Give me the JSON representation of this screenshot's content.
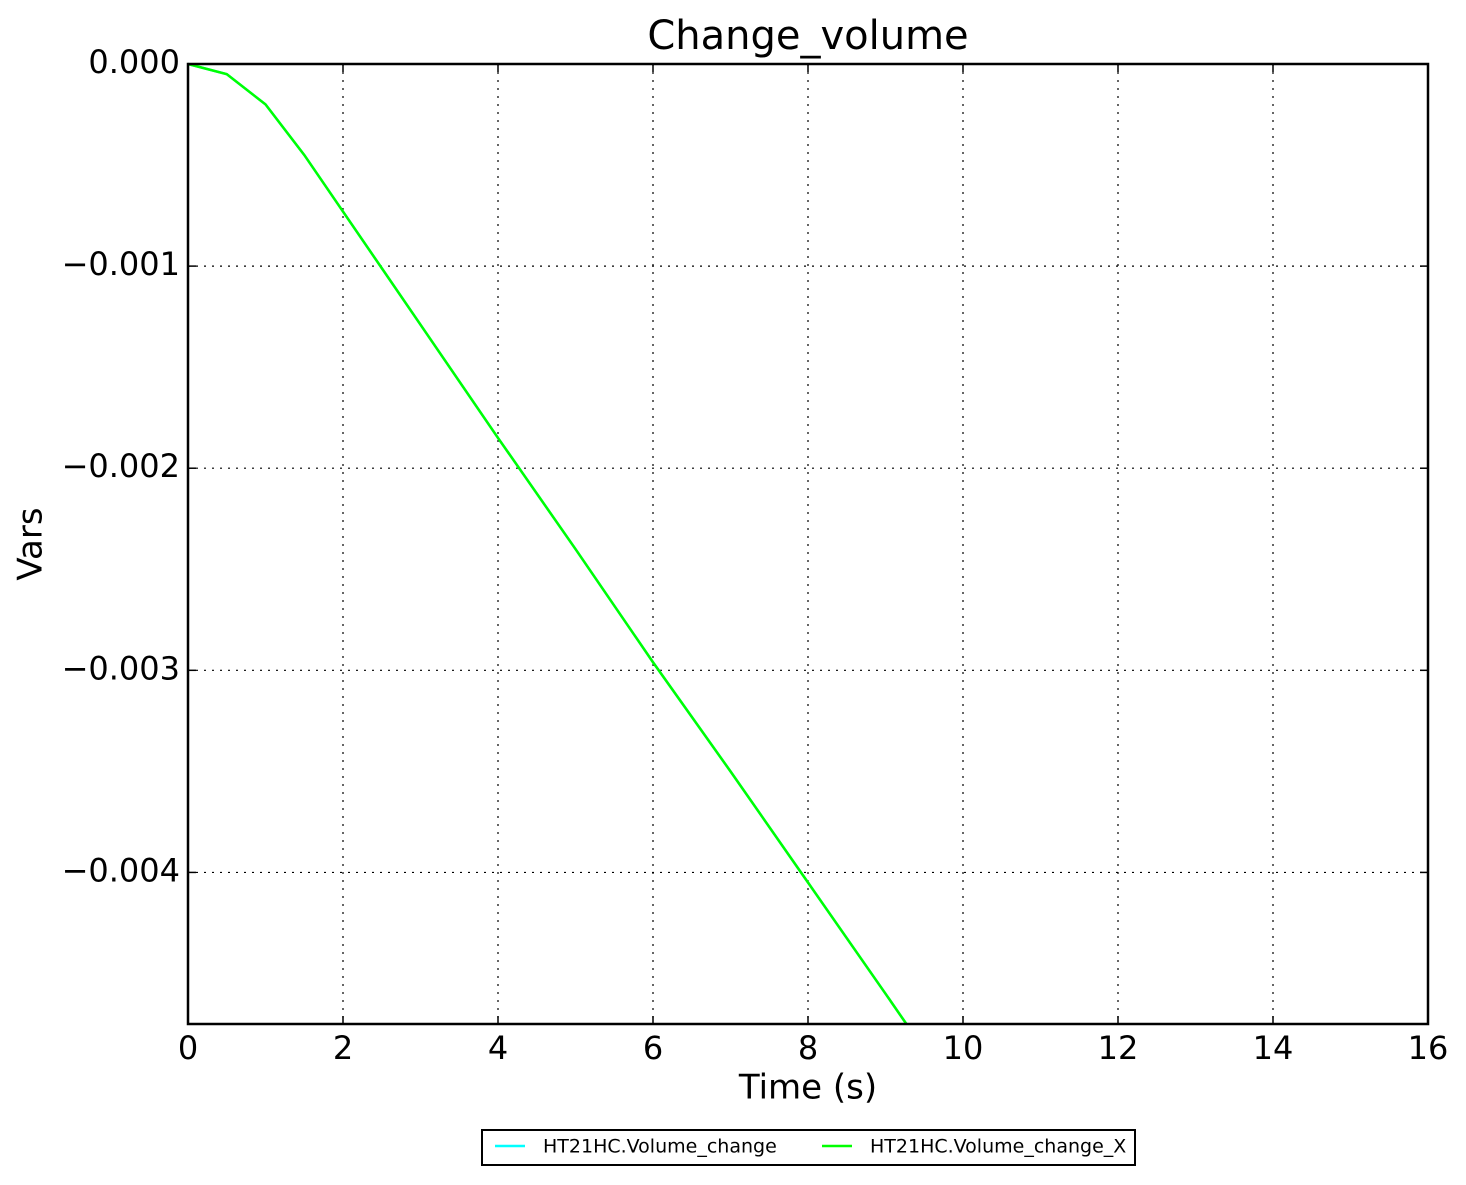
{
  "chart_data": {
    "type": "line",
    "title": "Change_volume",
    "x_label": "Time (s)",
    "y_label": "Vars",
    "x": [
      0,
      0.5,
      1,
      1.5,
      2,
      2.5,
      3,
      4,
      5,
      6,
      7,
      8,
      9,
      9.27
    ],
    "series": [
      {
        "name": "HT21HC.Volume_change",
        "color": "#00ffff",
        "values": [
          0,
          -5e-05,
          -0.0002,
          -0.00045,
          -0.00073,
          -0.00101,
          -0.00129,
          -0.00185,
          -0.0024,
          -0.00296,
          -0.0035,
          -0.00405,
          -0.0046,
          -0.00475
        ]
      },
      {
        "name": "HT21HC.Volume_change_X",
        "color": "#00ff00",
        "values": [
          0,
          -5e-05,
          -0.0002,
          -0.00045,
          -0.00073,
          -0.00101,
          -0.00129,
          -0.00185,
          -0.0024,
          -0.00296,
          -0.0035,
          -0.00405,
          -0.0046,
          -0.00475
        ]
      }
    ],
    "xlim": [
      0,
      16
    ],
    "xticks": [
      0,
      2,
      4,
      6,
      8,
      10,
      12,
      14,
      16
    ],
    "ylim": [
      -0.00475,
      0
    ],
    "yticks": [
      {
        "value": 0,
        "label": "0.000"
      },
      {
        "value": -0.001,
        "label": "−0.001"
      },
      {
        "value": -0.002,
        "label": "−0.002"
      },
      {
        "value": -0.003,
        "label": "−0.003"
      },
      {
        "value": -0.004,
        "label": "−0.004"
      }
    ],
    "grid": true,
    "legend": "bottom"
  }
}
